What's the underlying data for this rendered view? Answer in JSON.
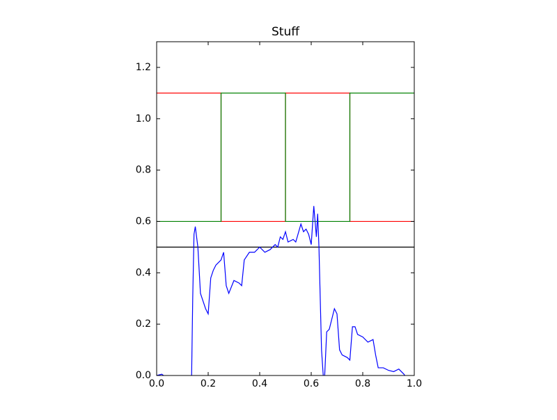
{
  "chart_data": {
    "type": "line",
    "title": "Stuff",
    "xlim": [
      0,
      1
    ],
    "ylim": [
      0,
      1.3
    ],
    "xticks": [
      {
        "value": 0,
        "label": "0.0"
      },
      {
        "value": 0.2,
        "label": "0.2"
      },
      {
        "value": 0.4,
        "label": "0.4"
      },
      {
        "value": 0.6,
        "label": "0.6"
      },
      {
        "value": 0.8,
        "label": "0.8"
      },
      {
        "value": 1,
        "label": "1.0"
      }
    ],
    "yticks": [
      {
        "value": 0,
        "label": "0.0"
      },
      0.2,
      0.4,
      0.6,
      0.8,
      {
        "value": 1,
        "label": "1.0"
      },
      1.2
    ],
    "grid": false,
    "series": [
      {
        "color": "#ff0000",
        "x": [
          0,
          0.25,
          0.25,
          0.5,
          0.5,
          0.75,
          0.75,
          1
        ],
        "values": [
          1.1,
          1.1,
          0.6,
          0.6,
          1.1,
          1.1,
          0.6,
          0.6
        ]
      },
      {
        "color": "#008000",
        "x": [
          0,
          0.25,
          0.25,
          0.5,
          0.5,
          0.75,
          0.75,
          1
        ],
        "values": [
          0.6,
          0.6,
          1.1,
          1.1,
          0.6,
          0.6,
          1.1,
          1.1
        ]
      },
      {
        "color": "#000000",
        "x": [
          0,
          1
        ],
        "values": [
          0.5,
          0.5
        ]
      },
      {
        "color": "#0000ff",
        "x": [
          0,
          0.02,
          0.04,
          0.135,
          0.14,
          0.145,
          0.15,
          0.16,
          0.17,
          0.18,
          0.19,
          0.2,
          0.21,
          0.22,
          0.23,
          0.25,
          0.26,
          0.27,
          0.28,
          0.3,
          0.32,
          0.33,
          0.34,
          0.36,
          0.38,
          0.4,
          0.42,
          0.44,
          0.46,
          0.47,
          0.48,
          0.49,
          0.5,
          0.51,
          0.53,
          0.54,
          0.56,
          0.57,
          0.58,
          0.59,
          0.6,
          0.61,
          0.62,
          0.625,
          0.63,
          0.64,
          0.65,
          0.66,
          0.67,
          0.68,
          0.69,
          0.7,
          0.71,
          0.72,
          0.74,
          0.75,
          0.76,
          0.77,
          0.78,
          0.8,
          0.82,
          0.84,
          0.85,
          0.86,
          0.88,
          0.9,
          0.92,
          0.94,
          0.96,
          0.97,
          1
        ],
        "values": [
          0,
          0.005,
          -0.01,
          -0.05,
          0.3,
          0.55,
          0.58,
          0.5,
          0.32,
          0.29,
          0.26,
          0.24,
          0.38,
          0.41,
          0.43,
          0.45,
          0.48,
          0.35,
          0.32,
          0.37,
          0.36,
          0.35,
          0.45,
          0.48,
          0.48,
          0.5,
          0.48,
          0.49,
          0.51,
          0.5,
          0.54,
          0.53,
          0.56,
          0.52,
          0.53,
          0.52,
          0.59,
          0.56,
          0.57,
          0.55,
          0.51,
          0.66,
          0.54,
          0.63,
          0.5,
          0.1,
          -0.05,
          0.17,
          0.18,
          0.22,
          0.26,
          0.24,
          0.1,
          0.08,
          0.07,
          0.06,
          0.19,
          0.19,
          0.16,
          0.15,
          0.13,
          0.14,
          0.08,
          0.03,
          0.03,
          0.02,
          0.015,
          0.025,
          0.005,
          -0.01,
          -0.05
        ]
      }
    ]
  }
}
